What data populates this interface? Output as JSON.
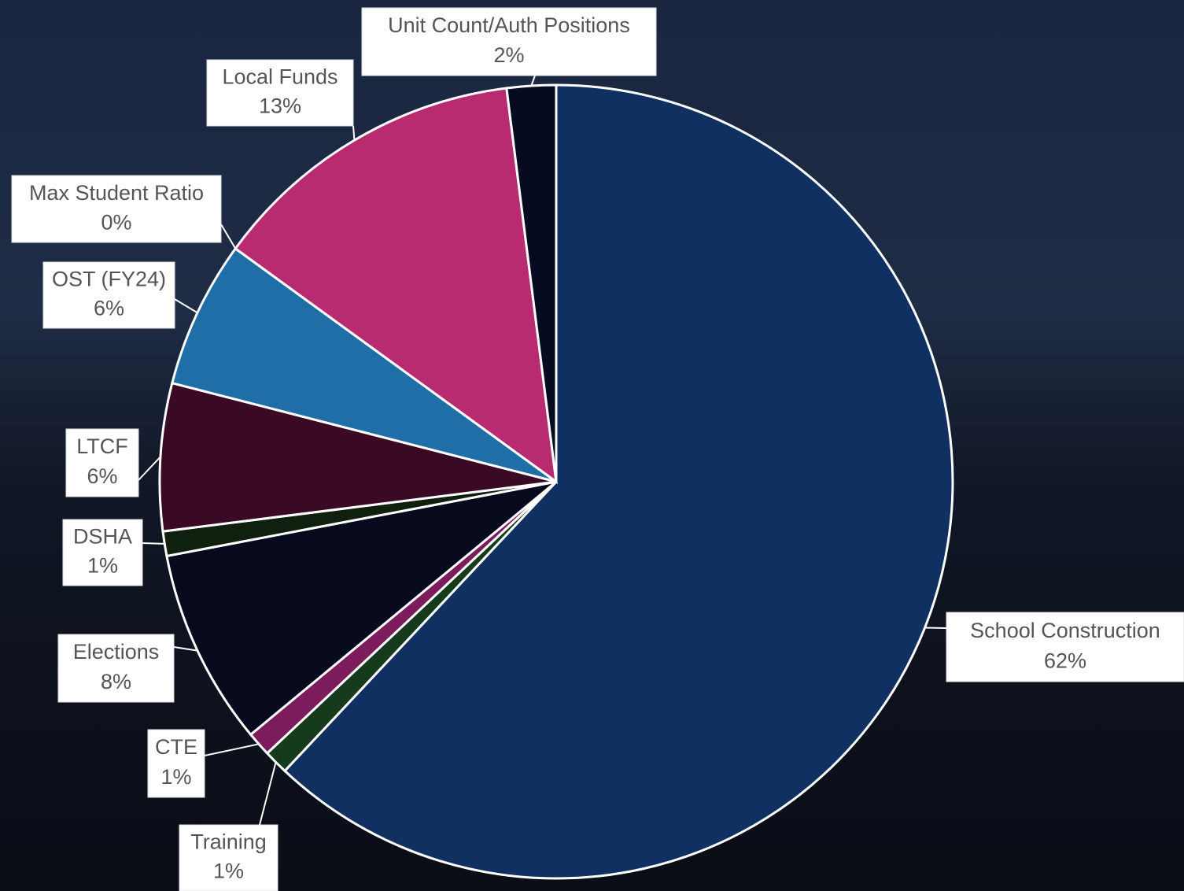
{
  "chart_data": {
    "type": "pie",
    "categories": [
      "School Construction",
      "Training",
      "CTE",
      "Elections",
      "DSHA",
      "LTCF",
      "OST (FY24)",
      "Max Student Ratio",
      "Local Funds",
      "Unit Count/Auth Positions"
    ],
    "values": [
      62,
      1,
      1,
      8,
      1,
      6,
      6,
      0,
      13,
      2
    ],
    "value_labels": [
      "62%",
      "1%",
      "1%",
      "8%",
      "1%",
      "6%",
      "6%",
      "0%",
      "13%",
      "2%"
    ],
    "colors": [
      "#0f3060",
      "#163a1c",
      "#7c1c5c",
      "#060a1c",
      "#10200f",
      "#3a0a24",
      "#1f6ea8",
      "#1f7a2c",
      "#b82b70",
      "#060b22"
    ]
  }
}
